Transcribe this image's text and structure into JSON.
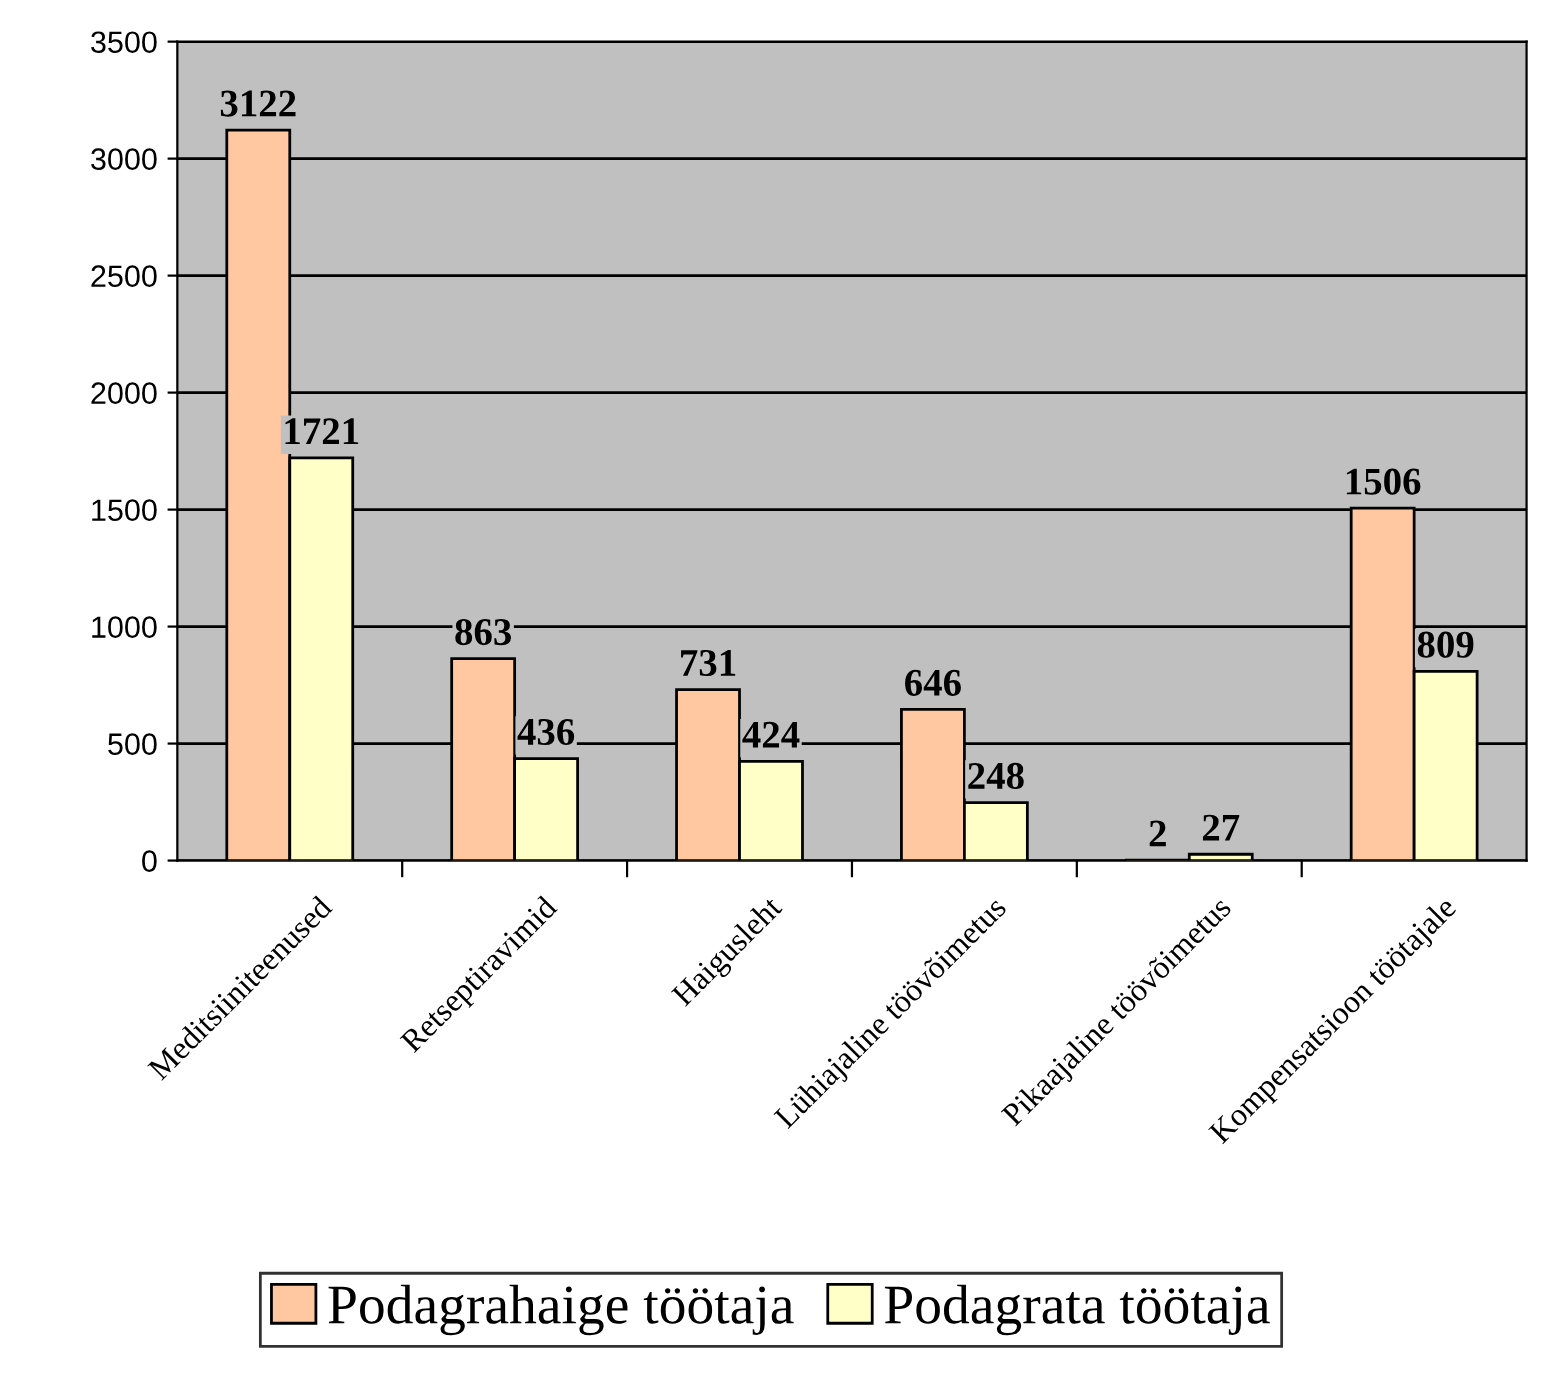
{
  "chart_data": {
    "type": "bar",
    "categories": [
      "Meditsiiniteenused",
      "Retseptiravimid",
      "Haigusleht",
      "Lühiajaline töövõimetus",
      "Pikaajaline töövõimetus",
      "Kompensatsioon töötajale"
    ],
    "series": [
      {
        "name": "Podagrahaige töötaja",
        "color": "#ffc8a0",
        "values": [
          3122,
          863,
          731,
          646,
          2,
          1506
        ]
      },
      {
        "name": "Podagrata töötaja",
        "color": "#ffffc8",
        "values": [
          1721,
          436,
          424,
          248,
          27,
          809
        ]
      }
    ],
    "ylim": [
      0,
      3500
    ],
    "yticks": [
      0,
      500,
      1000,
      1500,
      2000,
      2500,
      3000,
      3500
    ],
    "grid": "y",
    "legend": "bottom",
    "data_labels": true
  }
}
